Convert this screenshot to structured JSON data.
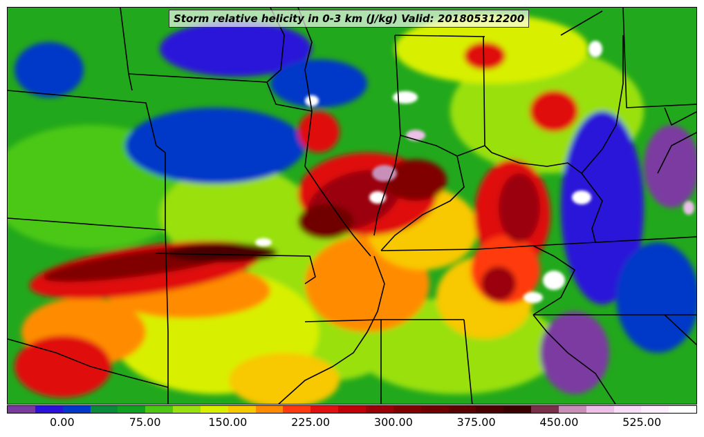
{
  "map": {
    "title": "Storm relative helicity in 0-3 km (J/kg) Valid: 201805312200",
    "variable": "storm-relative-helicity-0-3km",
    "units": "J/kg",
    "valid_time": "201805312200"
  },
  "legend": {
    "labels": [
      "0.00",
      "75.00",
      "150.00",
      "225.00",
      "300.00",
      "375.00",
      "450.00",
      "525.00"
    ],
    "label_values": [
      0,
      75,
      150,
      225,
      300,
      375,
      450,
      525
    ],
    "range": [
      -50,
      575
    ],
    "step": 25,
    "colors": [
      "#7b3aa0",
      "#2a12d8",
      "#0038c8",
      "#0a8a3a",
      "#12a020",
      "#4cc814",
      "#9ae010",
      "#d8f000",
      "#f8c800",
      "#ff8c00",
      "#ff3a10",
      "#e01010",
      "#c00008",
      "#9a0008",
      "#800000",
      "#700000",
      "#5c0000",
      "#4a0000",
      "#3a0000",
      "#7a3048",
      "#c890b8",
      "#ecc0e8",
      "#f8dcf8",
      "#ffeeff",
      "#ffffff"
    ]
  },
  "colors": {
    "state_border": "#000000",
    "background_field": "#1aa51a"
  }
}
